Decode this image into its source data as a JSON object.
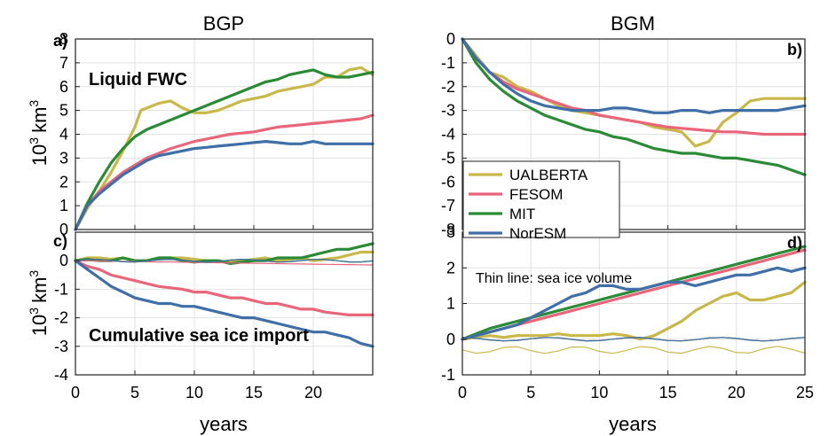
{
  "figure": {
    "column_titles": [
      "BGP",
      "BGM"
    ],
    "xlabel": "years",
    "ylabel_base": "10",
    "ylabel_exp": "3",
    "ylabel_unit": "km",
    "ylabel_unit_exp": "3"
  },
  "legend": {
    "entries": [
      {
        "name": "UALBERTA",
        "color": "#c8b84a"
      },
      {
        "name": "FESOM",
        "color": "#e8657a"
      },
      {
        "name": "MIT",
        "color": "#2a8a36"
      },
      {
        "name": "NorESM",
        "color": "#3f6fa6"
      }
    ]
  },
  "chart_data": [
    {
      "type": "line",
      "panel": "a)",
      "annotation": "Liquid FWC",
      "xlim": [
        0,
        25
      ],
      "ylim": [
        0,
        8
      ],
      "xticks": [
        0,
        5,
        10,
        15,
        20
      ],
      "yticks": [
        0,
        1,
        2,
        3,
        4,
        5,
        6,
        7,
        8
      ],
      "series": [
        {
          "name": "UALBERTA",
          "x": [
            0,
            1,
            2,
            3,
            4,
            5,
            5.5,
            6,
            7,
            8,
            9,
            10,
            11,
            12,
            13,
            14,
            15,
            16,
            17,
            18,
            19,
            20,
            21,
            22,
            23,
            24,
            25
          ],
          "y": [
            0,
            0.9,
            1.6,
            2.4,
            3.3,
            4.3,
            5.0,
            5.1,
            5.3,
            5.4,
            5.1,
            4.9,
            4.9,
            5.0,
            5.2,
            5.4,
            5.5,
            5.6,
            5.8,
            5.9,
            6.0,
            6.1,
            6.4,
            6.4,
            6.7,
            6.8,
            6.5
          ]
        },
        {
          "name": "FESOM",
          "x": [
            0,
            1,
            2,
            3,
            4,
            5,
            6,
            7,
            8,
            9,
            10,
            11,
            12,
            13,
            14,
            15,
            16,
            17,
            18,
            19,
            20,
            21,
            22,
            23,
            24,
            25
          ],
          "y": [
            0,
            1.0,
            1.6,
            2.0,
            2.4,
            2.7,
            3.0,
            3.2,
            3.4,
            3.55,
            3.7,
            3.8,
            3.9,
            4.0,
            4.05,
            4.1,
            4.2,
            4.3,
            4.35,
            4.4,
            4.45,
            4.5,
            4.55,
            4.6,
            4.65,
            4.8
          ]
        },
        {
          "name": "MIT",
          "x": [
            0,
            1,
            2,
            3,
            4,
            5,
            6,
            7,
            8,
            9,
            10,
            11,
            12,
            13,
            14,
            15,
            16,
            17,
            18,
            19,
            20,
            21,
            22,
            23,
            24,
            25
          ],
          "y": [
            0,
            1.1,
            2.0,
            2.8,
            3.4,
            3.9,
            4.2,
            4.4,
            4.6,
            4.8,
            5.0,
            5.2,
            5.4,
            5.6,
            5.8,
            6.0,
            6.2,
            6.3,
            6.5,
            6.6,
            6.7,
            6.5,
            6.4,
            6.4,
            6.5,
            6.6
          ]
        },
        {
          "name": "NorESM",
          "x": [
            0,
            1,
            2,
            3,
            4,
            5,
            6,
            7,
            8,
            9,
            10,
            11,
            12,
            13,
            14,
            15,
            16,
            17,
            18,
            19,
            20,
            21,
            22,
            23,
            24,
            25
          ],
          "y": [
            0,
            1.0,
            1.5,
            1.9,
            2.3,
            2.6,
            2.9,
            3.1,
            3.2,
            3.3,
            3.4,
            3.45,
            3.5,
            3.55,
            3.6,
            3.65,
            3.7,
            3.65,
            3.6,
            3.6,
            3.7,
            3.6,
            3.6,
            3.6,
            3.6,
            3.6
          ]
        }
      ]
    },
    {
      "type": "line",
      "panel": "b)",
      "xlim": [
        0,
        25
      ],
      "ylim": [
        -8,
        0
      ],
      "xticks": [
        0,
        5,
        10,
        15,
        20,
        25
      ],
      "yticks": [
        0,
        -1,
        -2,
        -3,
        -4,
        -5,
        -6,
        -7,
        -8
      ],
      "series": [
        {
          "name": "UALBERTA",
          "x": [
            0,
            1,
            2,
            3,
            4,
            5,
            6,
            7,
            8,
            9,
            10,
            11,
            12,
            13,
            14,
            15,
            16,
            17,
            18,
            19,
            20,
            21,
            22,
            23,
            24,
            25
          ],
          "y": [
            0,
            -0.7,
            -1.4,
            -1.6,
            -2.0,
            -2.2,
            -2.5,
            -2.8,
            -3.0,
            -3.1,
            -3.2,
            -3.3,
            -3.4,
            -3.5,
            -3.7,
            -3.8,
            -3.9,
            -4.5,
            -4.3,
            -3.5,
            -3.1,
            -2.6,
            -2.5,
            -2.5,
            -2.5,
            -2.5
          ]
        },
        {
          "name": "FESOM",
          "x": [
            0,
            1,
            2,
            3,
            4,
            5,
            6,
            7,
            8,
            9,
            10,
            11,
            12,
            13,
            14,
            15,
            16,
            17,
            18,
            19,
            20,
            21,
            22,
            23,
            24,
            25
          ],
          "y": [
            0,
            -0.8,
            -1.4,
            -1.8,
            -2.1,
            -2.3,
            -2.5,
            -2.7,
            -2.9,
            -3.0,
            -3.2,
            -3.3,
            -3.4,
            -3.5,
            -3.6,
            -3.7,
            -3.75,
            -3.8,
            -3.85,
            -3.9,
            -3.9,
            -3.95,
            -4.0,
            -4.0,
            -4.0,
            -4.0
          ]
        },
        {
          "name": "MIT",
          "x": [
            0,
            1,
            2,
            3,
            4,
            5,
            6,
            7,
            8,
            9,
            10,
            11,
            12,
            13,
            14,
            15,
            16,
            17,
            18,
            19,
            20,
            21,
            22,
            23,
            24,
            25
          ],
          "y": [
            0,
            -1.0,
            -1.7,
            -2.2,
            -2.6,
            -2.9,
            -3.2,
            -3.4,
            -3.6,
            -3.8,
            -3.9,
            -4.1,
            -4.2,
            -4.4,
            -4.6,
            -4.7,
            -4.8,
            -4.8,
            -4.9,
            -5.0,
            -5.0,
            -5.1,
            -5.2,
            -5.3,
            -5.5,
            -5.7
          ]
        },
        {
          "name": "NorESM",
          "x": [
            0,
            1,
            2,
            3,
            4,
            5,
            6,
            7,
            8,
            9,
            10,
            11,
            12,
            13,
            14,
            15,
            16,
            17,
            18,
            19,
            20,
            21,
            22,
            23,
            24,
            25
          ],
          "y": [
            0,
            -0.8,
            -1.4,
            -1.9,
            -2.3,
            -2.6,
            -2.8,
            -2.9,
            -3.0,
            -3.0,
            -3.0,
            -2.9,
            -2.9,
            -3.0,
            -3.1,
            -3.1,
            -3.0,
            -3.0,
            -3.1,
            -3.0,
            -3.0,
            -3.0,
            -3.0,
            -3.0,
            -2.9,
            -2.8
          ]
        }
      ]
    },
    {
      "type": "line",
      "panel": "c)",
      "annotation": "Cumulative sea ice import",
      "xlim": [
        0,
        25
      ],
      "ylim": [
        -4,
        1
      ],
      "xticks": [
        0,
        5,
        10,
        15,
        20
      ],
      "yticks": [
        0,
        -1,
        -2,
        -3,
        -4
      ],
      "series": [
        {
          "name": "UALBERTA",
          "x": [
            0,
            1,
            2,
            3,
            4,
            5,
            6,
            7,
            8,
            9,
            10,
            11,
            12,
            13,
            14,
            15,
            16,
            17,
            18,
            19,
            20,
            21,
            22,
            23,
            24,
            25
          ],
          "y": [
            0,
            0.1,
            0.1,
            0.05,
            0.1,
            0.0,
            0.0,
            0.1,
            0.1,
            0.1,
            0.05,
            0.0,
            0.0,
            -0.05,
            0.0,
            0.05,
            0.1,
            0.0,
            0.05,
            0.1,
            0.0,
            0.05,
            0.1,
            0.2,
            0.3,
            0.3
          ]
        },
        {
          "name": "FESOM",
          "x": [
            0,
            1,
            2,
            3,
            4,
            5,
            6,
            7,
            8,
            9,
            10,
            11,
            12,
            13,
            14,
            15,
            16,
            17,
            18,
            19,
            20,
            21,
            22,
            23,
            24,
            25
          ],
          "y": [
            0,
            -0.2,
            -0.3,
            -0.5,
            -0.6,
            -0.7,
            -0.8,
            -0.9,
            -0.95,
            -1.0,
            -1.1,
            -1.1,
            -1.2,
            -1.3,
            -1.3,
            -1.4,
            -1.5,
            -1.5,
            -1.6,
            -1.7,
            -1.7,
            -1.8,
            -1.85,
            -1.9,
            -1.9,
            -1.9
          ]
        },
        {
          "name": "MIT",
          "x": [
            0,
            1,
            2,
            3,
            4,
            5,
            6,
            7,
            8,
            9,
            10,
            11,
            12,
            13,
            14,
            15,
            16,
            17,
            18,
            19,
            20,
            21,
            22,
            23,
            24,
            25
          ],
          "y": [
            0,
            0.05,
            0.0,
            0.0,
            0.1,
            0.0,
            0.0,
            0.1,
            0.1,
            0.0,
            -0.05,
            0.0,
            0.0,
            -0.1,
            -0.05,
            0.0,
            0.0,
            0.1,
            0.1,
            0.1,
            0.2,
            0.3,
            0.4,
            0.4,
            0.5,
            0.6
          ]
        },
        {
          "name": "NorESM",
          "x": [
            0,
            1,
            2,
            3,
            4,
            5,
            6,
            7,
            8,
            9,
            10,
            11,
            12,
            13,
            14,
            15,
            16,
            17,
            18,
            19,
            20,
            21,
            22,
            23,
            24,
            25
          ],
          "y": [
            0,
            -0.3,
            -0.6,
            -0.9,
            -1.1,
            -1.3,
            -1.4,
            -1.5,
            -1.5,
            -1.6,
            -1.6,
            -1.7,
            -1.8,
            -1.9,
            -2.0,
            -2.0,
            -2.1,
            -2.2,
            -2.3,
            -2.4,
            -2.5,
            -2.5,
            -2.6,
            -2.7,
            -2.9,
            -3.0
          ]
        }
      ]
    },
    {
      "type": "line",
      "panel": "d)",
      "annotation": "Thin line: sea ice volume",
      "xlim": [
        0,
        25
      ],
      "ylim": [
        -1,
        3
      ],
      "xticks": [
        0,
        5,
        10,
        15,
        20,
        25
      ],
      "yticks": [
        3,
        2,
        1,
        0,
        -1
      ],
      "series": [
        {
          "name": "UALBERTA",
          "x": [
            0,
            1,
            2,
            3,
            4,
            5,
            6,
            7,
            8,
            9,
            10,
            11,
            12,
            13,
            14,
            15,
            16,
            17,
            18,
            19,
            20,
            21,
            22,
            23,
            24,
            25
          ],
          "y": [
            0,
            0.05,
            0.1,
            0.05,
            0.1,
            0.1,
            0.1,
            0.15,
            0.1,
            0.1,
            0.1,
            0.15,
            0.1,
            0.0,
            0.1,
            0.3,
            0.5,
            0.8,
            1.0,
            1.2,
            1.3,
            1.1,
            1.1,
            1.2,
            1.3,
            1.6
          ]
        },
        {
          "name": "FESOM",
          "x": [
            0,
            1,
            2,
            3,
            4,
            5,
            6,
            7,
            8,
            9,
            10,
            11,
            12,
            13,
            14,
            15,
            16,
            17,
            18,
            19,
            20,
            21,
            22,
            23,
            24,
            25
          ],
          "y": [
            0,
            0.1,
            0.2,
            0.3,
            0.4,
            0.5,
            0.6,
            0.7,
            0.8,
            0.9,
            1.0,
            1.1,
            1.2,
            1.3,
            1.4,
            1.5,
            1.6,
            1.7,
            1.8,
            1.9,
            2.0,
            2.1,
            2.2,
            2.3,
            2.4,
            2.5
          ]
        },
        {
          "name": "MIT",
          "x": [
            0,
            1,
            2,
            3,
            4,
            5,
            6,
            7,
            8,
            9,
            10,
            11,
            12,
            13,
            14,
            15,
            16,
            17,
            18,
            19,
            20,
            21,
            22,
            23,
            24,
            25
          ],
          "y": [
            0,
            0.15,
            0.3,
            0.4,
            0.5,
            0.6,
            0.7,
            0.8,
            0.9,
            1.0,
            1.1,
            1.2,
            1.3,
            1.4,
            1.5,
            1.6,
            1.7,
            1.8,
            1.9,
            2.0,
            2.1,
            2.2,
            2.3,
            2.4,
            2.5,
            2.6
          ]
        },
        {
          "name": "NorESM",
          "x": [
            0,
            1,
            2,
            3,
            4,
            5,
            6,
            7,
            8,
            9,
            10,
            11,
            12,
            13,
            14,
            15,
            16,
            17,
            18,
            19,
            20,
            21,
            22,
            23,
            24,
            25
          ],
          "y": [
            0,
            0.1,
            0.2,
            0.3,
            0.4,
            0.6,
            0.8,
            1.0,
            1.2,
            1.3,
            1.5,
            1.5,
            1.4,
            1.4,
            1.5,
            1.6,
            1.6,
            1.5,
            1.6,
            1.7,
            1.8,
            1.8,
            1.9,
            2.0,
            1.9,
            2.0
          ]
        }
      ]
    }
  ]
}
